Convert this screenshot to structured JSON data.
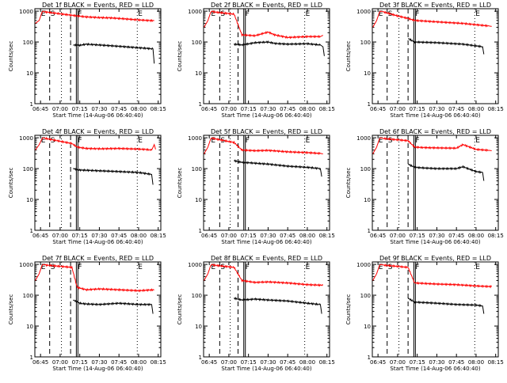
{
  "common": {
    "ylabel": "Counts/sec",
    "xlabel": "Start Time (14-Aug-06 06:40:40)",
    "x_ticks": [
      "06:45",
      "07:00",
      "07:15",
      "07:30",
      "07:45",
      "08:00",
      "08:15"
    ],
    "y_ticks": [
      "1",
      "10",
      "100",
      "1000"
    ],
    "event_marker_labels": [
      "E",
      "S",
      "F",
      "E"
    ],
    "colors": {
      "events": "#000000",
      "lld": "#ff0000",
      "axes": "#000000"
    }
  },
  "chart_data": [
    {
      "type": "line",
      "title": "Det 1f BLACK = Events, RED = LLD",
      "xlabel": "Start Time (14-Aug-06 06:40:40)",
      "ylabel": "Counts/sec",
      "ylim": [
        1,
        1200
      ],
      "yscale": "log",
      "x_ticks": [
        "06:45",
        "07:00",
        "07:15",
        "07:30",
        "07:45",
        "08:00",
        "08:15"
      ],
      "markers": {
        "dashed": [
          "06:52",
          "07:08"
        ],
        "dotted": [
          "07:01",
          "07:59"
        ],
        "solid": [
          "07:13"
        ],
        "labels": [
          "E",
          "S",
          "F",
          "E"
        ]
      },
      "series": [
        {
          "name": "LLD",
          "color": "#ff0000",
          "x": [
            "06:41",
            "06:44",
            "06:46",
            "06:47",
            "06:48",
            "07:13",
            "07:20",
            "07:30",
            "07:40",
            "07:50",
            "08:00",
            "08:07",
            "08:12"
          ],
          "y": [
            400,
            500,
            900,
            1000,
            950,
            700,
            650,
            620,
            600,
            560,
            520,
            500,
            490
          ]
        },
        {
          "name": "Events",
          "color": "#000000",
          "x": [
            "07:10",
            "07:15",
            "07:20",
            "07:30",
            "07:40",
            "07:50",
            "08:00",
            "08:07",
            "08:11",
            "08:12"
          ],
          "y": [
            80,
            78,
            85,
            80,
            75,
            70,
            65,
            62,
            60,
            20
          ]
        }
      ]
    },
    {
      "type": "line",
      "title": "Det 2f BLACK = Events, RED = LLD",
      "xlabel": "Start Time (14-Aug-06 06:40:40)",
      "ylabel": "Counts/sec",
      "ylim": [
        1,
        1200
      ],
      "yscale": "log",
      "x_ticks": [
        "06:45",
        "07:00",
        "07:15",
        "07:30",
        "07:45",
        "08:00",
        "08:15"
      ],
      "markers": {
        "dashed": [
          "06:53",
          "07:07"
        ],
        "dotted": [
          "07:01",
          "07:58"
        ],
        "solid": [
          "07:12"
        ],
        "labels": [
          "E",
          "S",
          "F",
          "E"
        ]
      },
      "series": [
        {
          "name": "LLD",
          "color": "#ff0000",
          "x": [
            "06:41",
            "06:44",
            "06:46",
            "06:47",
            "06:48",
            "07:04",
            "07:10",
            "07:20",
            "07:30",
            "07:35",
            "07:45",
            "08:00",
            "08:10",
            "08:12"
          ],
          "y": [
            300,
            500,
            900,
            1000,
            950,
            800,
            170,
            160,
            210,
            170,
            140,
            150,
            150,
            165
          ]
        },
        {
          "name": "Events",
          "color": "#000000",
          "x": [
            "07:04",
            "07:10",
            "07:20",
            "07:30",
            "07:35",
            "07:45",
            "08:00",
            "08:10",
            "08:12",
            "08:13"
          ],
          "y": [
            85,
            80,
            95,
            100,
            90,
            85,
            88,
            80,
            70,
            35
          ]
        }
      ]
    },
    {
      "type": "line",
      "title": "Det 3f BLACK = Events, RED = LLD",
      "xlabel": "Start Time (14-Aug-06 06:40:40)",
      "ylabel": "Counts/sec",
      "ylim": [
        1,
        1200
      ],
      "yscale": "log",
      "x_ticks": [
        "06:45",
        "07:00",
        "07:15",
        "07:30",
        "07:45",
        "08:00",
        "08:15"
      ],
      "markers": {
        "dashed": [
          "06:52",
          "07:08"
        ],
        "dotted": [
          "07:01",
          "07:59"
        ],
        "solid": [
          "07:13"
        ],
        "labels": [
          "E",
          "S",
          "F",
          "E"
        ]
      },
      "series": [
        {
          "name": "LLD",
          "color": "#ff0000",
          "x": [
            "06:41",
            "06:44",
            "06:46",
            "06:47",
            "06:49",
            "07:00",
            "07:08",
            "07:13",
            "07:30",
            "07:50",
            "08:10",
            "08:12"
          ],
          "y": [
            300,
            500,
            900,
            1000,
            950,
            700,
            580,
            500,
            450,
            400,
            330,
            320
          ]
        },
        {
          "name": "Events",
          "color": "#000000",
          "x": [
            "07:08",
            "07:13",
            "07:30",
            "07:50",
            "08:00",
            "08:05",
            "08:06"
          ],
          "y": [
            130,
            100,
            95,
            85,
            75,
            70,
            40
          ]
        }
      ]
    },
    {
      "type": "line",
      "title": "Det 4f BLACK = Events, RED = LLD",
      "xlabel": "Start Time (14-Aug-06 06:40:40)",
      "ylabel": "Counts/sec",
      "ylim": [
        1,
        1200
      ],
      "yscale": "log",
      "x_ticks": [
        "06:45",
        "07:00",
        "07:15",
        "07:30",
        "07:45",
        "08:00",
        "08:15"
      ],
      "markers": {
        "dashed": [
          "06:52",
          "07:08"
        ],
        "dotted": [
          "07:01",
          "07:59"
        ],
        "solid": [
          "07:13"
        ],
        "labels": [
          "E",
          "S",
          "F",
          "E"
        ]
      },
      "series": [
        {
          "name": "LLD",
          "color": "#ff0000",
          "x": [
            "06:41",
            "06:44",
            "06:46",
            "06:47",
            "06:49",
            "07:09",
            "07:13",
            "07:20",
            "07:30",
            "07:45",
            "08:00",
            "08:05",
            "08:10",
            "08:12",
            "08:13"
          ],
          "y": [
            400,
            600,
            900,
            1000,
            950,
            650,
            500,
            450,
            440,
            450,
            430,
            420,
            400,
            600,
            420
          ]
        },
        {
          "name": "Events",
          "color": "#000000",
          "x": [
            "07:10",
            "07:15",
            "07:30",
            "07:45",
            "08:00",
            "08:05",
            "08:10",
            "08:11"
          ],
          "y": [
            100,
            90,
            85,
            80,
            75,
            70,
            65,
            30
          ]
        }
      ]
    },
    {
      "type": "line",
      "title": "Det 5f BLACK = Events, RED = LLD",
      "xlabel": "Start Time (14-Aug-06 06:40:40)",
      "ylabel": "Counts/sec",
      "ylim": [
        1,
        1200
      ],
      "yscale": "log",
      "x_ticks": [
        "06:45",
        "07:00",
        "07:15",
        "07:30",
        "07:45",
        "08:00",
        "08:15"
      ],
      "markers": {
        "dashed": [
          "06:53",
          "07:07"
        ],
        "dotted": [
          "07:01",
          "07:58"
        ],
        "solid": [
          "07:12"
        ],
        "labels": [
          "E",
          "S",
          "F",
          "E"
        ]
      },
      "series": [
        {
          "name": "LLD",
          "color": "#ff0000",
          "x": [
            "06:41",
            "06:44",
            "06:46",
            "06:47",
            "06:48",
            "07:04",
            "07:10",
            "07:20",
            "07:30",
            "07:45",
            "08:00",
            "08:10",
            "08:12"
          ],
          "y": [
            300,
            500,
            900,
            1000,
            950,
            700,
            400,
            380,
            390,
            350,
            330,
            310,
            300
          ]
        },
        {
          "name": "Events",
          "color": "#000000",
          "x": [
            "07:04",
            "07:10",
            "07:20",
            "07:30",
            "07:45",
            "08:00",
            "08:10",
            "08:11"
          ],
          "y": [
            180,
            160,
            150,
            140,
            120,
            110,
            100,
            55
          ]
        }
      ]
    },
    {
      "type": "line",
      "title": "Det 6f BLACK = Events, RED = LLD",
      "xlabel": "Start Time (14-Aug-06 06:40:40)",
      "ylabel": "Counts/sec",
      "ylim": [
        1,
        1200
      ],
      "yscale": "log",
      "x_ticks": [
        "06:45",
        "07:00",
        "07:15",
        "07:30",
        "07:45",
        "08:00",
        "08:15"
      ],
      "markers": {
        "dashed": [
          "06:52",
          "07:08"
        ],
        "dotted": [
          "07:01",
          "07:59"
        ],
        "solid": [
          "07:13"
        ],
        "labels": [
          "E",
          "S",
          "F",
          "E"
        ]
      },
      "series": [
        {
          "name": "LLD",
          "color": "#ff0000",
          "x": [
            "06:41",
            "06:44",
            "06:46",
            "06:47",
            "06:49",
            "07:08",
            "07:13",
            "07:20",
            "07:30",
            "07:45",
            "07:50",
            "08:00",
            "08:10",
            "08:12"
          ],
          "y": [
            300,
            500,
            900,
            1000,
            950,
            800,
            500,
            480,
            470,
            460,
            600,
            420,
            390,
            380
          ]
        },
        {
          "name": "Events",
          "color": "#000000",
          "x": [
            "07:08",
            "07:13",
            "07:20",
            "07:30",
            "07:45",
            "07:50",
            "08:00",
            "08:05",
            "08:06"
          ],
          "y": [
            140,
            110,
            105,
            100,
            100,
            115,
            80,
            75,
            40
          ]
        }
      ]
    },
    {
      "type": "line",
      "title": "Det 7f BLACK = Events, RED = LLD",
      "xlabel": "Start Time (14-Aug-06 06:40:40)",
      "ylabel": "Counts/sec",
      "ylim": [
        1,
        1200
      ],
      "yscale": "log",
      "x_ticks": [
        "06:45",
        "07:00",
        "07:15",
        "07:30",
        "07:45",
        "08:00",
        "08:15"
      ],
      "markers": {
        "dashed": [
          "06:52",
          "07:08"
        ],
        "dotted": [
          "07:01",
          "07:59"
        ],
        "solid": [
          "07:13"
        ],
        "labels": [
          "E",
          "S",
          "F",
          "E"
        ]
      },
      "series": [
        {
          "name": "LLD",
          "color": "#ff0000",
          "x": [
            "06:41",
            "06:44",
            "06:46",
            "06:47",
            "06:49",
            "07:09",
            "07:13",
            "07:20",
            "07:30",
            "07:45",
            "08:00",
            "08:12"
          ],
          "y": [
            300,
            500,
            900,
            1000,
            950,
            800,
            180,
            150,
            160,
            150,
            140,
            150
          ]
        },
        {
          "name": "Events",
          "color": "#000000",
          "x": [
            "07:10",
            "07:15",
            "07:20",
            "07:30",
            "07:45",
            "08:00",
            "08:10",
            "08:11"
          ],
          "y": [
            70,
            55,
            52,
            50,
            55,
            50,
            50,
            25
          ]
        }
      ]
    },
    {
      "type": "line",
      "title": "Det 8f BLACK = Events, RED = LLD",
      "xlabel": "Start Time (14-Aug-06 06:40:40)",
      "ylabel": "Counts/sec",
      "ylim": [
        1,
        1200
      ],
      "yscale": "log",
      "x_ticks": [
        "06:45",
        "07:00",
        "07:15",
        "07:30",
        "07:45",
        "08:00",
        "08:15"
      ],
      "markers": {
        "dashed": [
          "06:53",
          "07:07"
        ],
        "dotted": [
          "07:01",
          "07:58"
        ],
        "solid": [
          "07:12"
        ],
        "labels": [
          "E",
          "S",
          "F",
          "E"
        ]
      },
      "series": [
        {
          "name": "LLD",
          "color": "#ff0000",
          "x": [
            "06:41",
            "06:44",
            "06:46",
            "06:47",
            "06:48",
            "07:04",
            "07:10",
            "07:20",
            "07:30",
            "07:45",
            "08:00",
            "08:12"
          ],
          "y": [
            300,
            500,
            900,
            1000,
            950,
            800,
            300,
            260,
            270,
            250,
            220,
            210
          ]
        },
        {
          "name": "Events",
          "color": "#000000",
          "x": [
            "07:04",
            "07:10",
            "07:20",
            "07:30",
            "07:45",
            "08:00",
            "08:10",
            "08:11"
          ],
          "y": [
            80,
            70,
            75,
            70,
            65,
            55,
            50,
            25
          ]
        }
      ]
    },
    {
      "type": "line",
      "title": "Det 9f BLACK = Events, RED = LLD",
      "xlabel": "Start Time (14-Aug-06 06:40:40)",
      "ylabel": "Counts/sec",
      "ylim": [
        1,
        1200
      ],
      "yscale": "log",
      "x_ticks": [
        "06:45",
        "07:00",
        "07:15",
        "07:30",
        "07:45",
        "08:00",
        "08:15"
      ],
      "markers": {
        "dashed": [
          "06:52",
          "07:08"
        ],
        "dotted": [
          "07:01",
          "07:59"
        ],
        "solid": [
          "07:13"
        ],
        "labels": [
          "E",
          "S",
          "F",
          "E"
        ]
      },
      "series": [
        {
          "name": "LLD",
          "color": "#ff0000",
          "x": [
            "06:41",
            "06:44",
            "06:46",
            "06:47",
            "06:49",
            "07:08",
            "07:13",
            "07:30",
            "07:45",
            "08:00",
            "08:12"
          ],
          "y": [
            300,
            500,
            900,
            1000,
            950,
            800,
            250,
            230,
            220,
            200,
            190
          ]
        },
        {
          "name": "Events",
          "color": "#000000",
          "x": [
            "07:08",
            "07:13",
            "07:30",
            "07:45",
            "08:00",
            "08:05",
            "08:06"
          ],
          "y": [
            80,
            60,
            55,
            50,
            48,
            45,
            25
          ]
        }
      ]
    }
  ]
}
